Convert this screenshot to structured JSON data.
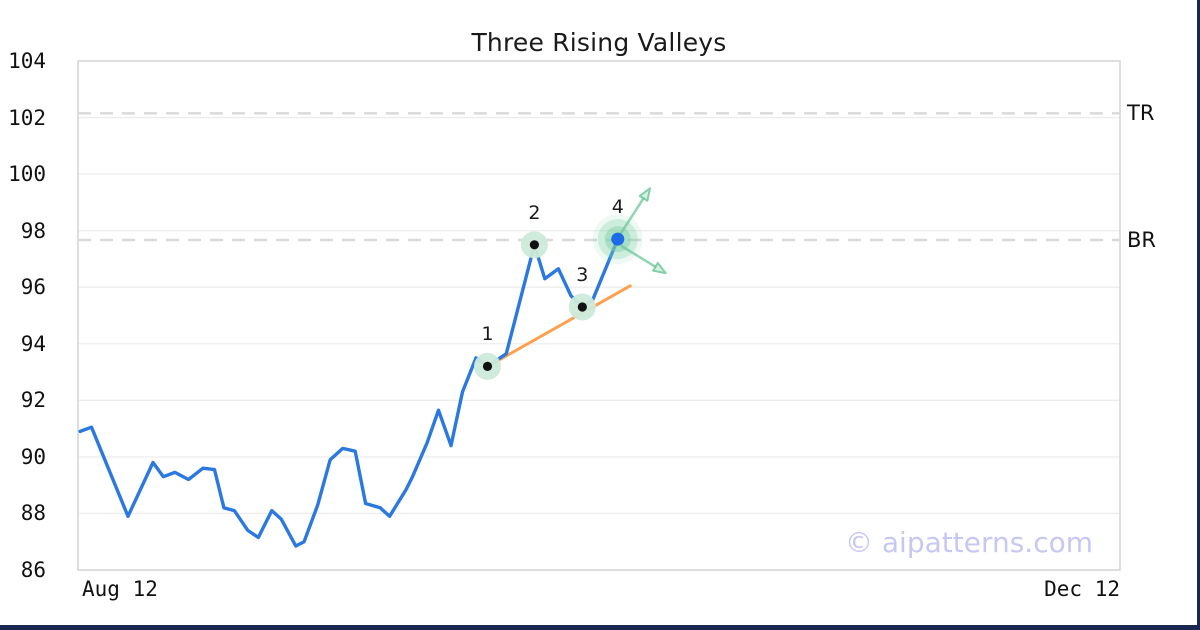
{
  "watermark": "© aipatterns.com",
  "chart_data": {
    "type": "line",
    "title": "Three Rising Valleys",
    "xlabel": "",
    "ylabel": "",
    "ylim": [
      86,
      104
    ],
    "y_ticks": [
      86,
      88,
      90,
      92,
      94,
      96,
      98,
      100,
      102,
      104
    ],
    "x_axis": {
      "start_label": "Aug 12",
      "end_label": "Dec 12",
      "note": "x values are fractions 0-1 across the plot width"
    },
    "grid": true,
    "legend": false,
    "series": [
      {
        "name": "price",
        "color": "#2b79e0",
        "points": [
          [
            0.002,
            90.9
          ],
          [
            0.013,
            91.05
          ],
          [
            0.048,
            87.9
          ],
          [
            0.072,
            89.8
          ],
          [
            0.082,
            89.3
          ],
          [
            0.093,
            89.45
          ],
          [
            0.106,
            89.2
          ],
          [
            0.12,
            89.6
          ],
          [
            0.131,
            89.55
          ],
          [
            0.14,
            88.2
          ],
          [
            0.15,
            88.1
          ],
          [
            0.163,
            87.4
          ],
          [
            0.173,
            87.15
          ],
          [
            0.186,
            88.1
          ],
          [
            0.195,
            87.8
          ],
          [
            0.209,
            86.85
          ],
          [
            0.217,
            87.0
          ],
          [
            0.23,
            88.3
          ],
          [
            0.242,
            89.9
          ],
          [
            0.254,
            90.3
          ],
          [
            0.266,
            90.2
          ],
          [
            0.276,
            88.35
          ],
          [
            0.29,
            88.2
          ],
          [
            0.299,
            87.9
          ],
          [
            0.315,
            88.85
          ],
          [
            0.321,
            89.3
          ],
          [
            0.335,
            90.5
          ],
          [
            0.346,
            91.65
          ],
          [
            0.358,
            90.4
          ],
          [
            0.369,
            92.3
          ],
          [
            0.382,
            93.5
          ],
          [
            0.393,
            93.2
          ],
          [
            0.411,
            93.65
          ],
          [
            0.438,
            97.5
          ],
          [
            0.448,
            96.3
          ],
          [
            0.461,
            96.65
          ],
          [
            0.473,
            95.7
          ],
          [
            0.484,
            95.3
          ],
          [
            0.494,
            95.55
          ],
          [
            0.518,
            97.7
          ]
        ]
      }
    ],
    "trendline": {
      "color": "#ffa04e",
      "from": [
        0.398,
        93.3
      ],
      "to": [
        0.53,
        96.05
      ]
    },
    "markers": [
      {
        "label": "1",
        "x": 0.393,
        "y": 93.2,
        "style": "valley"
      },
      {
        "label": "2",
        "x": 0.438,
        "y": 97.5,
        "style": "valley"
      },
      {
        "label": "3",
        "x": 0.484,
        "y": 95.3,
        "style": "valley"
      },
      {
        "label": "4",
        "x": 0.518,
        "y": 97.7,
        "style": "breakout"
      }
    ],
    "levels": [
      {
        "label": "TR",
        "y": 102.15
      },
      {
        "label": "BR",
        "y": 97.67
      }
    ],
    "arrows": [
      {
        "direction": "up",
        "from": [
          0.52,
          97.85
        ],
        "to": [
          0.549,
          99.5
        ]
      },
      {
        "direction": "down",
        "from": [
          0.522,
          97.45
        ],
        "to": [
          0.564,
          96.5
        ]
      }
    ]
  },
  "colors": {
    "price_line": "#2b79e0",
    "trendline": "#ffa04e",
    "marker_circle": "#cdead9",
    "marker_dot": "#111111",
    "breakout_dot": "#1d6be8",
    "breakout_glow": "#7ecfa4",
    "arrow_line": "#6ec79a",
    "arrow_head_fill": "#a7dfc3",
    "level_dash": "#d9d9d9",
    "grid": "#ededed",
    "plot_border": "#d6d6d6",
    "watermark": "#c6c8f4",
    "bottom_bar": "#1a2750",
    "right_bar": "#1a2750"
  }
}
